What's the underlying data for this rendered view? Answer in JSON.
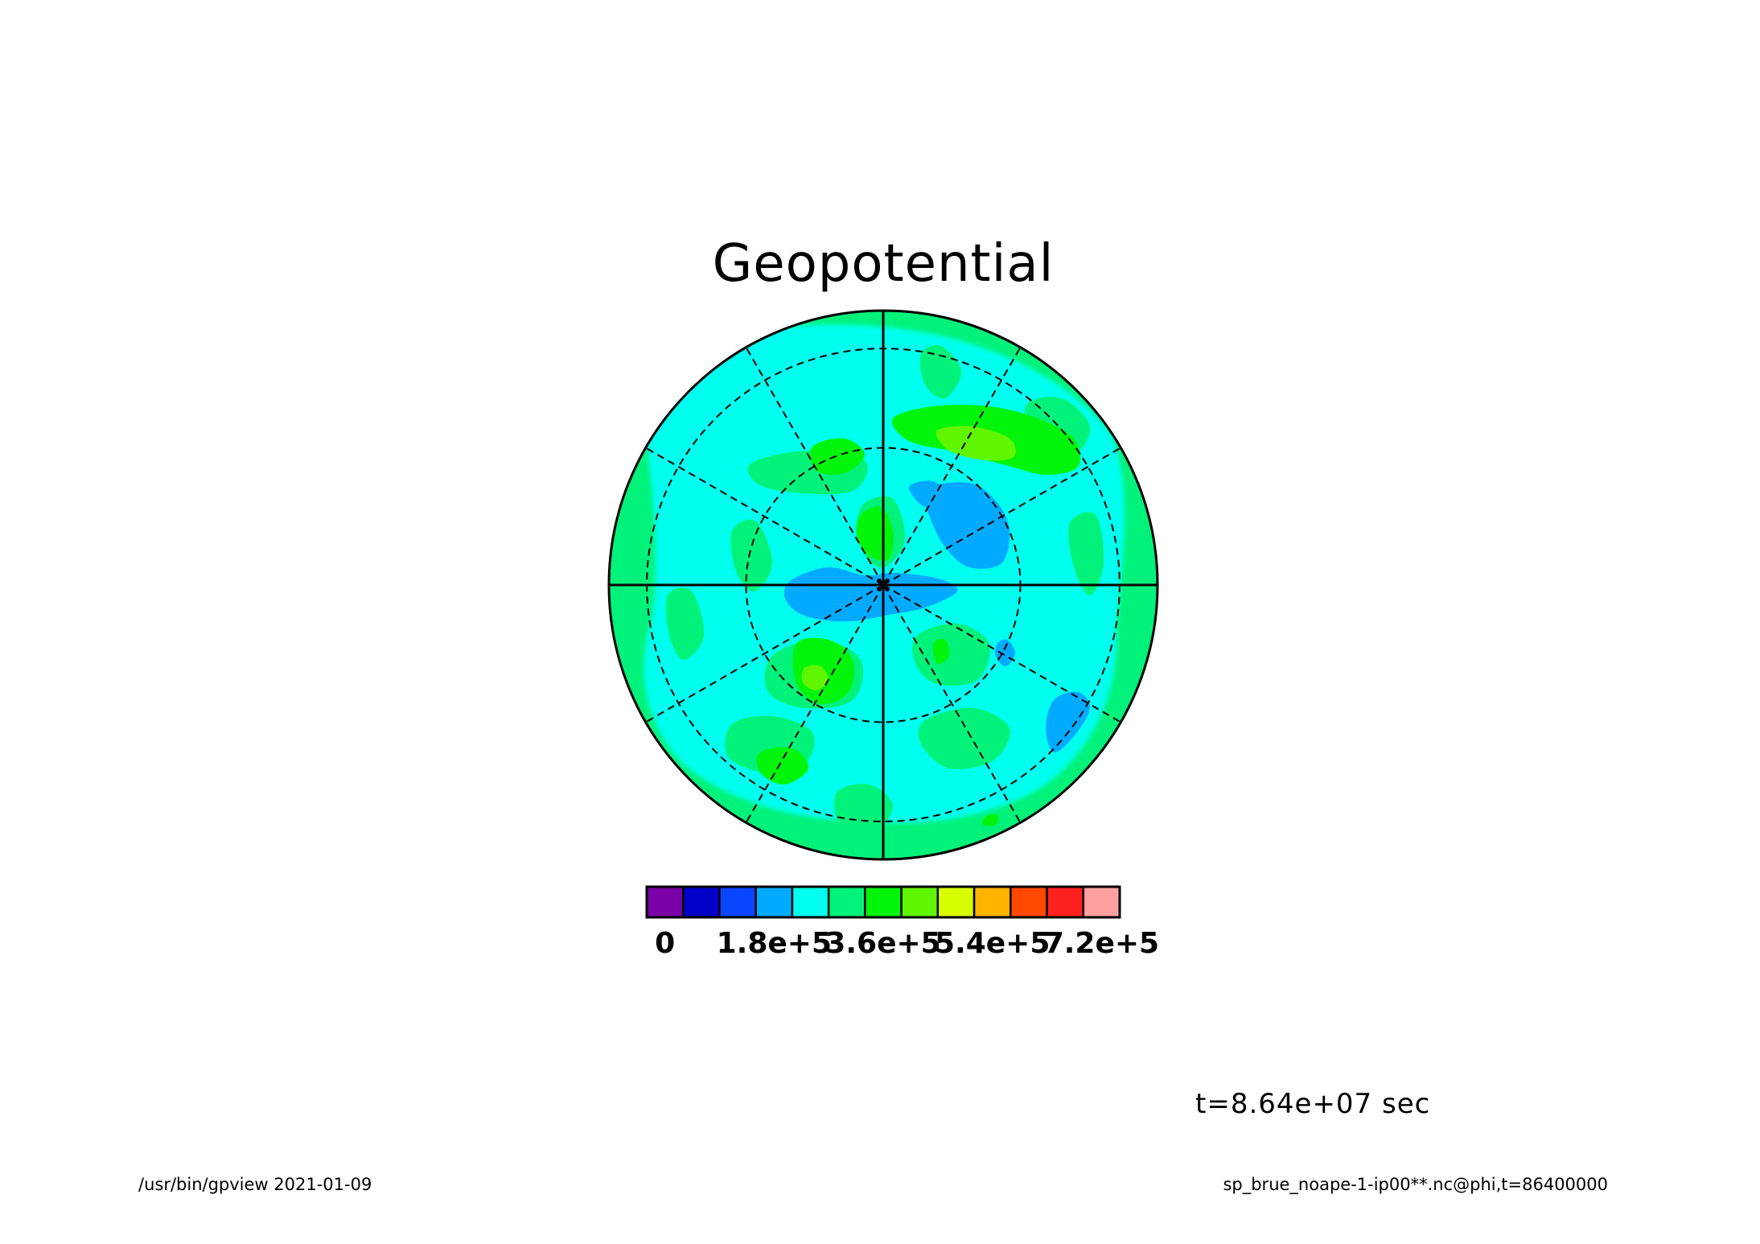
{
  "chart_data": {
    "type": "heatmap",
    "projection": "polar stereographic",
    "title": "Geopotential",
    "variable": "phi",
    "field_levels": {
      "background_level": "3.0e+5 to 3.6e+5",
      "dominant_inner_level": "2.4e+5 to 3.0e+5",
      "low_patches_level": "1.8e+5 to 2.4e+5",
      "high_patches_level": "3.6e+5 to 4.2e+5",
      "max_patches_level": "4.2e+5 to 4.8e+5",
      "field_min": 190000.0,
      "field_max": 450000.0
    },
    "colorbar": {
      "levels": [
        0,
        60000,
        120000,
        180000,
        240000,
        300000,
        360000,
        420000,
        480000,
        540000,
        600000,
        660000,
        720000,
        780000
      ],
      "colors": [
        "#7a00a8",
        "#0000c8",
        "#0a46ff",
        "#00aaff",
        "#00ffee",
        "#00f27a",
        "#00f50a",
        "#60f500",
        "#d8ff00",
        "#ffb400",
        "#ff4800",
        "#ff2020",
        "#ffa0a0"
      ],
      "tick_values": [
        0,
        180000,
        360000,
        540000,
        720000
      ],
      "tick_labels": [
        "0",
        "1.8e+5",
        "3.6e+5",
        "5.4e+5",
        "7.2e+5"
      ]
    },
    "grid": true,
    "grid_meridians_deg": 30,
    "grid_parallels": 2,
    "legend": "bottom"
  },
  "annotations": {
    "time_label": "t=8.64e+07 sec"
  },
  "footer": {
    "left": "/usr/bin/gpview   2021-01-09",
    "right": "sp_brue_noape-1-ip00**.nc@phi,t=86400000"
  },
  "colors": {
    "outline": "#000000",
    "background": "#ffffff"
  }
}
